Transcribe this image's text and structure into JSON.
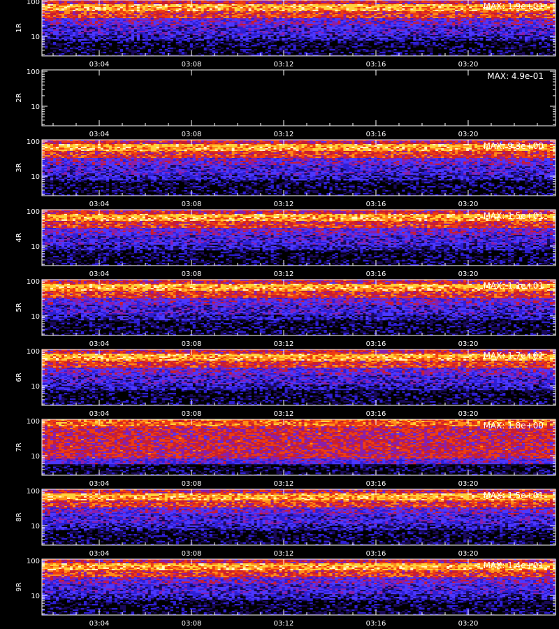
{
  "chart_data": [
    {
      "type": "heatmap",
      "ylabel": "1R",
      "annotation": "MAX: 1.9e+01",
      "max_value": 19,
      "y_scale": "log",
      "y_ticks": [
        "10",
        "100"
      ],
      "x_ticks": [
        "03:04",
        "03:08",
        "03:12",
        "03:16",
        "03:20"
      ],
      "profile": "strong"
    },
    {
      "type": "heatmap",
      "ylabel": "2R",
      "annotation": "MAX: 4.9e-01",
      "max_value": 0.49,
      "y_scale": "log",
      "y_ticks": [
        "10",
        "100"
      ],
      "x_ticks": [
        "03:04",
        "03:08",
        "03:12",
        "03:16",
        "03:20"
      ],
      "profile": "empty"
    },
    {
      "type": "heatmap",
      "ylabel": "3R",
      "annotation": "MAX: 9.3e+00",
      "max_value": 9.3,
      "y_scale": "log",
      "y_ticks": [
        "10",
        "100"
      ],
      "x_ticks": [
        "03:04",
        "03:08",
        "03:12",
        "03:16",
        "03:20"
      ],
      "profile": "strong"
    },
    {
      "type": "heatmap",
      "ylabel": "4R",
      "annotation": "MAX: 1.5e+01",
      "max_value": 15,
      "y_scale": "log",
      "y_ticks": [
        "10",
        "100"
      ],
      "x_ticks": [
        "03:04",
        "03:08",
        "03:12",
        "03:16",
        "03:20"
      ],
      "profile": "strong"
    },
    {
      "type": "heatmap",
      "ylabel": "5R",
      "annotation": "MAX: 1.1e+01",
      "max_value": 11,
      "y_scale": "log",
      "y_ticks": [
        "10",
        "100"
      ],
      "x_ticks": [
        "03:04",
        "03:08",
        "03:12",
        "03:16",
        "03:20"
      ],
      "profile": "strong"
    },
    {
      "type": "heatmap",
      "ylabel": "6R",
      "annotation": "MAX: 1.7e+01",
      "max_value": 17,
      "y_scale": "log",
      "y_ticks": [
        "10",
        "100"
      ],
      "x_ticks": [
        "03:04",
        "03:08",
        "03:12",
        "03:16",
        "03:20"
      ],
      "profile": "strong"
    },
    {
      "type": "heatmap",
      "ylabel": "7R",
      "annotation": "MAX: 1.8e+00",
      "max_value": 1.8,
      "y_scale": "log",
      "y_ticks": [
        "10",
        "100"
      ],
      "x_ticks": [
        "03:04",
        "03:08",
        "03:12",
        "03:16",
        "03:20"
      ],
      "profile": "noisy"
    },
    {
      "type": "heatmap",
      "ylabel": "8R",
      "annotation": "MAX: 1.5e+01",
      "max_value": 15,
      "y_scale": "log",
      "y_ticks": [
        "10",
        "100"
      ],
      "x_ticks": [
        "03:04",
        "03:08",
        "03:12",
        "03:16",
        "03:20"
      ],
      "profile": "strong"
    },
    {
      "type": "heatmap",
      "ylabel": "9R",
      "annotation": "MAX: 1.4e+01",
      "max_value": 14,
      "y_scale": "log",
      "y_ticks": [
        "10",
        "100"
      ],
      "x_ticks": [
        "03:04",
        "03:08",
        "03:12",
        "03:16",
        "03:20"
      ],
      "profile": "strong"
    }
  ],
  "colormap": [
    "#000000",
    "#1a0a5a",
    "#2e1fd6",
    "#4d38ff",
    "#8a1faa",
    "#c81e32",
    "#ee3d12",
    "#ff8c1a",
    "#ffd23a",
    "#fff6c0"
  ],
  "axis_color": "#ffffff",
  "background": "#000000"
}
